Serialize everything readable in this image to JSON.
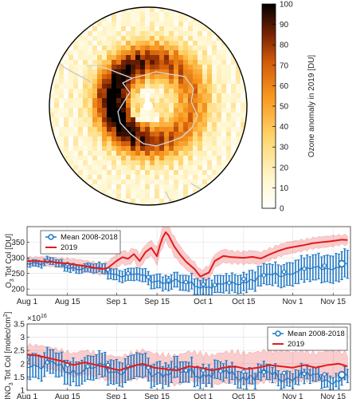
{
  "chart_data": [
    {
      "type": "heatmap",
      "colorbar": {
        "label": "Ozone anomaly in 2019 [DU]",
        "ticks": [
          "0",
          "10",
          "20",
          "30",
          "40",
          "50",
          "60",
          "70",
          "80",
          "90",
          "100"
        ],
        "range": [
          0,
          100
        ]
      },
      "projection": "south-polar-stereographic",
      "field": {
        "ring_anomaly_max": 100,
        "ring_center_colat_deg": 22,
        "ring_width_deg": 11,
        "pole_value": 30,
        "outer_value": 12
      }
    },
    {
      "type": "line",
      "ylabel_parts": {
        "base": "O",
        "sub": "3",
        "rest": " Tot Col [DU]"
      },
      "ylim": [
        180,
        400
      ],
      "yticks": [
        "200",
        "250",
        "300",
        "350"
      ],
      "xlim_days": [
        213,
        325
      ],
      "xticks": [
        {
          "label": "Aug 1",
          "day": 213
        },
        {
          "label": "Aug 15",
          "day": 227
        },
        {
          "label": "Sep 1",
          "day": 244
        },
        {
          "label": "Sep 15",
          "day": 258
        },
        {
          "label": "Oct 1",
          "day": 274
        },
        {
          "label": "Oct 15",
          "day": 288
        },
        {
          "label": "Nov 1",
          "day": 305
        },
        {
          "label": "Nov 15",
          "day": 319
        }
      ],
      "legend": {
        "position": "top-left",
        "entries": [
          "Mean 2008-2018",
          "2019"
        ]
      },
      "series": [
        {
          "name": "Mean 2008-2018",
          "color": "#1f77c4",
          "style": "markers-errorbars",
          "points": [
            [
              213,
              293
            ],
            [
              220,
              289
            ],
            [
              227,
              280
            ],
            [
              234,
              272
            ],
            [
              241,
              262
            ],
            [
              248,
              250
            ],
            [
              255,
              238
            ],
            [
              262,
              228
            ],
            [
              268,
              222
            ],
            [
              274,
              215
            ],
            [
              278,
              213
            ],
            [
              283,
              220
            ],
            [
              288,
              232
            ],
            [
              295,
              244
            ],
            [
              302,
              255
            ],
            [
              309,
              265
            ],
            [
              316,
              275
            ],
            [
              322,
              281
            ]
          ],
          "error": [
            [
              213,
              10
            ],
            [
              230,
              12
            ],
            [
              250,
              20
            ],
            [
              270,
              25
            ],
            [
              290,
              30
            ],
            [
              322,
              45
            ]
          ]
        },
        {
          "name": "2019",
          "color": "#e41a1c",
          "style": "line-band",
          "points": [
            [
              213,
              290
            ],
            [
              220,
              288
            ],
            [
              227,
              282
            ],
            [
              234,
              272
            ],
            [
              239,
              264
            ],
            [
              241,
              268
            ],
            [
              244,
              290
            ],
            [
              246,
              302
            ],
            [
              248,
              297
            ],
            [
              250,
              312
            ],
            [
              252,
              290
            ],
            [
              254,
              318
            ],
            [
              256,
              332
            ],
            [
              258,
              305
            ],
            [
              259,
              340
            ],
            [
              260,
              366
            ],
            [
              261,
              382
            ],
            [
              262,
              372
            ],
            [
              264,
              336
            ],
            [
              266,
              310
            ],
            [
              268,
              288
            ],
            [
              271,
              264
            ],
            [
              273,
              240
            ],
            [
              276,
              253
            ],
            [
              278,
              290
            ],
            [
              281,
              306
            ],
            [
              284,
              302
            ],
            [
              288,
              300
            ],
            [
              291,
              303
            ],
            [
              294,
              298
            ],
            [
              297,
              311
            ],
            [
              300,
              322
            ],
            [
              303,
              331
            ],
            [
              306,
              336
            ],
            [
              309,
              341
            ],
            [
              312,
              347
            ],
            [
              315,
              350
            ],
            [
              318,
              353
            ],
            [
              322,
              358
            ],
            [
              324,
              357
            ]
          ],
          "band": [
            [
              213,
              12
            ],
            [
              256,
              22
            ],
            [
              262,
              30
            ],
            [
              270,
              20
            ],
            [
              300,
              18
            ],
            [
              324,
              15
            ]
          ]
        }
      ]
    },
    {
      "type": "line",
      "ylabel_parts": {
        "base": "HNO",
        "sub": "3",
        "rest": " Tot Col [molec/cm",
        "sup": "2",
        "end": "]"
      },
      "exponent_label": "×10",
      "exponent_value": "16",
      "ylim": [
        1,
        3.5
      ],
      "yticks": [
        "1",
        "1.5",
        "2",
        "2.5",
        "3",
        "3.5"
      ],
      "xlim_days": [
        213,
        325
      ],
      "xticks": [
        {
          "label": "Aug 1",
          "day": 213
        },
        {
          "label": "Aug 15",
          "day": 227
        },
        {
          "label": "Sep 1",
          "day": 244
        },
        {
          "label": "Sep 15",
          "day": 258
        },
        {
          "label": "Oct 1",
          "day": 274
        },
        {
          "label": "Oct 15",
          "day": 288
        },
        {
          "label": "Nov 1",
          "day": 305
        },
        {
          "label": "Nov 15",
          "day": 319
        }
      ],
      "legend": {
        "position": "top-right",
        "entries": [
          "Mean 2008-2018",
          "2019"
        ]
      },
      "series": [
        {
          "name": "Mean 2008-2018",
          "color": "#1f77c4",
          "style": "markers-errorbars",
          "points": [
            [
              213,
              2.15
            ],
            [
              220,
              2.05
            ],
            [
              227,
              1.95
            ],
            [
              234,
              1.9
            ],
            [
              241,
              1.95
            ],
            [
              248,
              1.9
            ],
            [
              255,
              1.85
            ],
            [
              262,
              1.8
            ],
            [
              268,
              1.75
            ],
            [
              274,
              1.75
            ],
            [
              280,
              1.72
            ],
            [
              288,
              1.7
            ],
            [
              295,
              1.68
            ],
            [
              302,
              1.65
            ],
            [
              309,
              1.62
            ],
            [
              316,
              1.6
            ],
            [
              322,
              1.58
            ]
          ],
          "error": [
            [
              213,
              0.45
            ],
            [
              250,
              0.45
            ],
            [
              290,
              0.3
            ],
            [
              322,
              0.25
            ]
          ]
        },
        {
          "name": "2019",
          "color": "#e41a1c",
          "style": "line-band",
          "points": [
            [
              213,
              2.35
            ],
            [
              217,
              2.3
            ],
            [
              221,
              2.2
            ],
            [
              225,
              2.1
            ],
            [
              229,
              1.95
            ],
            [
              233,
              2.05
            ],
            [
              237,
              1.95
            ],
            [
              241,
              1.85
            ],
            [
              245,
              1.75
            ],
            [
              249,
              1.9
            ],
            [
              253,
              2.0
            ],
            [
              257,
              1.85
            ],
            [
              261,
              1.8
            ],
            [
              265,
              1.75
            ],
            [
              269,
              1.9
            ],
            [
              273,
              1.85
            ],
            [
              277,
              1.75
            ],
            [
              281,
              1.85
            ],
            [
              285,
              1.9
            ],
            [
              289,
              1.8
            ],
            [
              293,
              1.85
            ],
            [
              297,
              1.95
            ],
            [
              301,
              1.9
            ],
            [
              305,
              1.85
            ],
            [
              309,
              1.95
            ],
            [
              313,
              1.85
            ],
            [
              317,
              1.95
            ],
            [
              321,
              2.0
            ],
            [
              324,
              1.9
            ]
          ],
          "band": [
            [
              213,
              0.35
            ],
            [
              260,
              0.5
            ],
            [
              300,
              0.55
            ],
            [
              324,
              0.45
            ]
          ]
        }
      ]
    }
  ]
}
